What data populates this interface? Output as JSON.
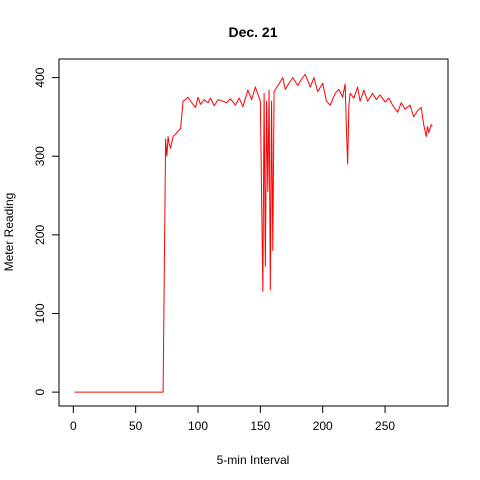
{
  "chart_data": {
    "type": "line",
    "title": "Dec. 21",
    "xlabel": "5-min Interval",
    "ylabel": "Meter Reading",
    "xlim": [
      1,
      288
    ],
    "ylim": [
      0,
      406
    ],
    "xticks": [
      0,
      50,
      100,
      150,
      200,
      250
    ],
    "yticks": [
      0,
      100,
      200,
      300,
      400
    ],
    "grid": false,
    "series": [
      {
        "color": "#ff0000",
        "x": [
          1,
          72,
          73,
          74,
          75,
          76,
          77,
          78,
          80,
          82,
          84,
          86,
          88,
          90,
          92,
          95,
          98,
          100,
          102,
          105,
          108,
          110,
          113,
          116,
          120,
          123,
          126,
          130,
          133,
          136,
          140,
          143,
          146,
          150,
          152,
          153,
          154,
          155,
          156,
          157,
          158,
          159,
          160,
          161,
          162,
          165,
          168,
          170,
          173,
          176,
          180,
          183,
          186,
          190,
          193,
          196,
          200,
          203,
          206,
          210,
          213,
          216,
          218,
          219,
          220,
          221,
          222,
          225,
          228,
          230,
          233,
          236,
          240,
          243,
          246,
          250,
          253,
          256,
          260,
          263,
          266,
          270,
          273,
          276,
          279,
          281,
          282,
          283,
          284,
          285,
          286,
          287,
          288
        ],
        "values": [
          0,
          0,
          160,
          322,
          300,
          325,
          315,
          310,
          325,
          328,
          332,
          335,
          370,
          372,
          375,
          368,
          362,
          375,
          366,
          372,
          368,
          374,
          364,
          372,
          370,
          368,
          373,
          365,
          374,
          363,
          384,
          372,
          388,
          370,
          128,
          380,
          160,
          370,
          255,
          384,
          130,
          370,
          180,
          382,
          385,
          392,
          400,
          385,
          393,
          400,
          390,
          398,
          404,
          388,
          400,
          382,
          393,
          370,
          365,
          380,
          385,
          375,
          392,
          335,
          290,
          365,
          380,
          374,
          388,
          370,
          384,
          370,
          380,
          372,
          378,
          369,
          374,
          365,
          356,
          368,
          360,
          365,
          350,
          358,
          362,
          340,
          333,
          325,
          338,
          330,
          335,
          340,
          338
        ]
      }
    ]
  }
}
